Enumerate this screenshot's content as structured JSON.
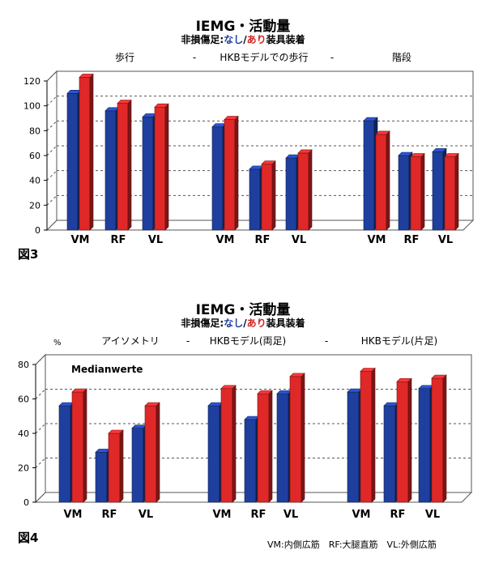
{
  "colors": {
    "none": "#1f3f9e",
    "with": "#e02828"
  },
  "chart_data": [
    {
      "type": "bar",
      "title": "IEMG・活動量",
      "subtitle": {
        "prefix": "非損傷足:",
        "none": "なし",
        "sep": "/",
        "with": "あり",
        "suffix": "装具装着"
      },
      "group_labels": [
        "歩行",
        "-",
        "HKBモデルでの歩行",
        "-",
        "階段"
      ],
      "categories": [
        "VM",
        "RF",
        "VL"
      ],
      "groups": [
        {
          "label": "歩行",
          "none": [
            110,
            96,
            91
          ],
          "with": [
            123,
            102,
            99
          ]
        },
        {
          "label": "HKBモデルでの歩行",
          "none": [
            83,
            49,
            58
          ],
          "with": [
            89,
            53,
            62
          ]
        },
        {
          "label": "階段",
          "none": [
            88,
            60,
            63
          ],
          "with": [
            77,
            59,
            59
          ]
        }
      ],
      "yticks": [
        0,
        20,
        40,
        60,
        80,
        100,
        120
      ],
      "ylim": [
        0,
        120
      ],
      "ylabel": "",
      "grid": true,
      "figure_label": "図3"
    },
    {
      "type": "bar",
      "title": "IEMG・活動量",
      "subtitle": {
        "prefix": "非損傷足:",
        "none": "なし",
        "sep": "/",
        "with": "あり",
        "suffix": "装具装着"
      },
      "group_labels": [
        "アイソメトリ",
        "-",
        "HKBモデル(両足)",
        "-",
        "HKBモデル(片足)"
      ],
      "unit": "%",
      "annotation": "Medianwerte",
      "categories": [
        "VM",
        "RF",
        "VL"
      ],
      "groups": [
        {
          "label": "アイソメトリ",
          "none": [
            56,
            29,
            43
          ],
          "with": [
            64,
            40,
            56
          ]
        },
        {
          "label": "HKBモデル(両足)",
          "none": [
            56,
            48,
            63
          ],
          "with": [
            66,
            63,
            73
          ]
        },
        {
          "label": "HKBモデル(片足)",
          "none": [
            64,
            56,
            66
          ],
          "with": [
            76,
            70,
            72
          ]
        }
      ],
      "yticks": [
        0,
        20,
        40,
        60,
        80
      ],
      "ylim": [
        0,
        80
      ],
      "ylabel": "",
      "grid": true,
      "figure_label": "図4"
    }
  ],
  "legend": "VM:内側広筋　RF:大腿直筋　VL:外側広筋"
}
